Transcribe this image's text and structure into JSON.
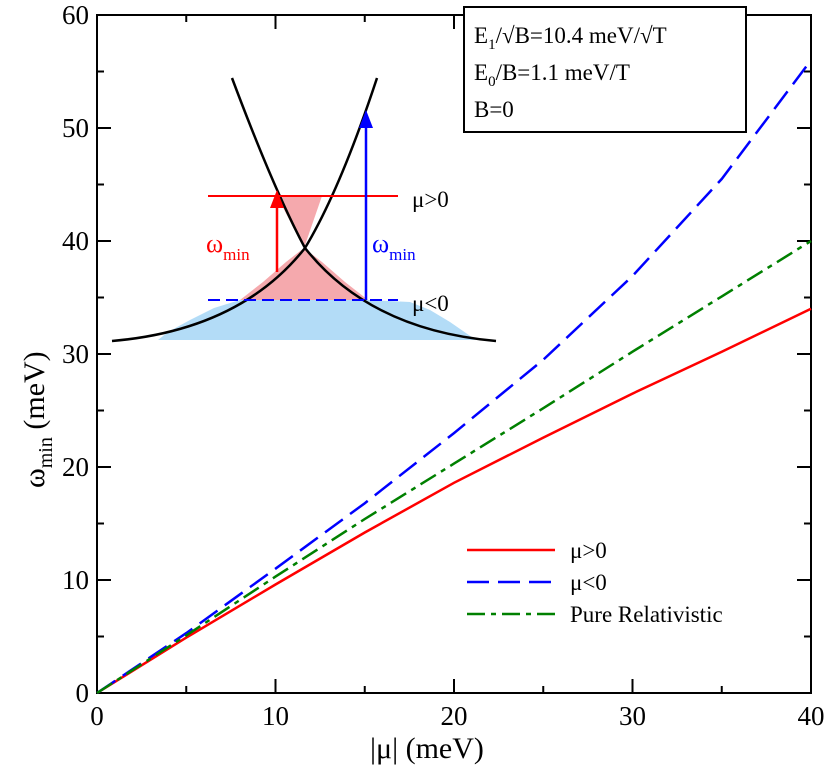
{
  "chart_data": {
    "type": "line",
    "xlabel": "|μ| (meV)",
    "ylabel": "ω",
    "ylabel_sub": "min",
    "ylabel_unit": " (meV)",
    "xlim": [
      0,
      40
    ],
    "ylim": [
      0,
      60
    ],
    "xticks": [
      0,
      10,
      20,
      30,
      40
    ],
    "yticks": [
      0,
      10,
      20,
      30,
      40,
      50,
      60
    ],
    "grid": false,
    "legend_position": "bottom-right",
    "series": [
      {
        "name": "μ>0",
        "color": "#ff0000",
        "dash": "solid",
        "x": [
          0,
          5,
          10,
          15,
          20,
          25,
          30,
          35,
          40
        ],
        "y": [
          0,
          4.9,
          9.6,
          14.2,
          18.6,
          22.6,
          26.5,
          30.2,
          34.0
        ]
      },
      {
        "name": "μ<0",
        "color": "#0000ff",
        "dash": "dashed",
        "x": [
          0,
          5,
          10,
          15,
          20,
          25,
          30,
          35,
          40
        ],
        "y": [
          0,
          5.3,
          11.0,
          16.8,
          23.0,
          29.5,
          36.9,
          45.5,
          56.0
        ]
      },
      {
        "name": "Pure Relativistic",
        "color": "#008000",
        "dash": "dashdot",
        "x": [
          0,
          5,
          10,
          15,
          20,
          25,
          30,
          35,
          40
        ],
        "y": [
          0,
          5.1,
          10.3,
          15.4,
          20.3,
          25.2,
          30.2,
          35.1,
          40.0
        ]
      }
    ],
    "annotation_box": {
      "line1_main": "E",
      "line1_sub": "1",
      "line1_rest": "/√B=10.4 meV/√T",
      "line2_main": "E",
      "line2_sub": "0",
      "line2_rest": "/B=1.1 meV/T",
      "line3": "B=0"
    },
    "inset": {
      "mu_pos_label": "μ>0",
      "mu_neg_label": "μ<0",
      "omega_symbol": "ω",
      "omega_sub": "min",
      "pos_color": "#ff0000",
      "neg_color": "#0000ff",
      "pos_fill": "#f5a9ad",
      "neg_fill": "#b3dcf7"
    }
  }
}
